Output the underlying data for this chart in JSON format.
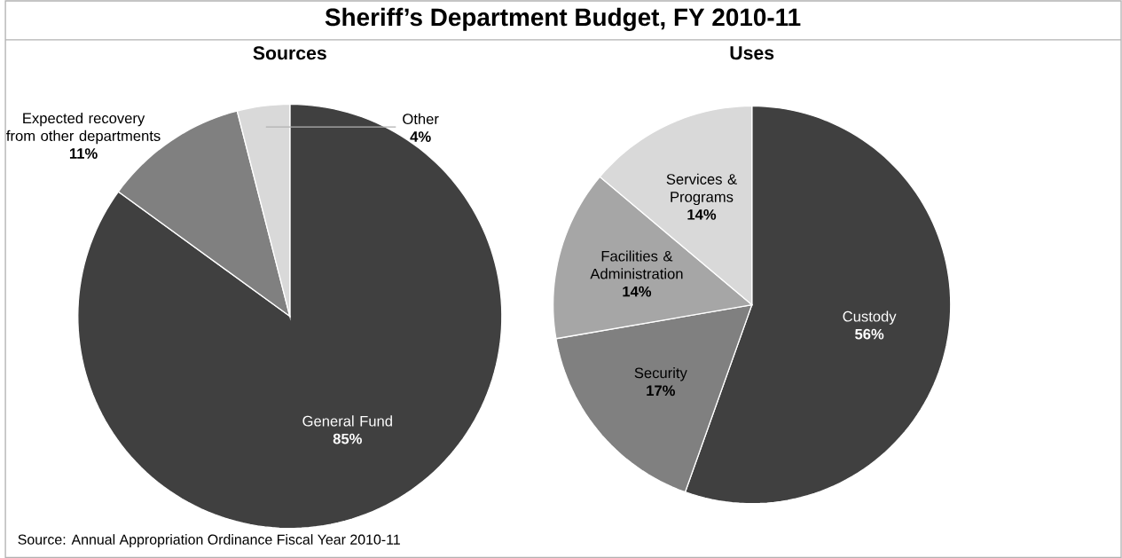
{
  "chart_data": [
    {
      "type": "other",
      "title": "Sheriff’s Department Budget, FY 2010-11",
      "annotations": [
        "Source: Annual Appropriation Ordinance Fiscal Year 2010-11"
      ]
    },
    {
      "type": "pie",
      "title": "Sources",
      "categories": [
        "General Fund",
        "Expected recovery from other departments",
        "Other"
      ],
      "values": [
        85,
        11,
        4
      ],
      "colors": [
        "#404040",
        "#808080",
        "#d9d9d9"
      ],
      "value_labels": [
        "85%",
        "11%",
        "4%"
      ]
    },
    {
      "type": "pie",
      "title": "Uses",
      "categories": [
        "Custody",
        "Security",
        "Facilities & Administration",
        "Services & Programs"
      ],
      "values": [
        56,
        17,
        14,
        14
      ],
      "colors": [
        "#404040",
        "#808080",
        "#a6a6a6",
        "#d9d9d9"
      ],
      "value_labels": [
        "56%",
        "17%",
        "14%",
        "14%"
      ]
    }
  ]
}
